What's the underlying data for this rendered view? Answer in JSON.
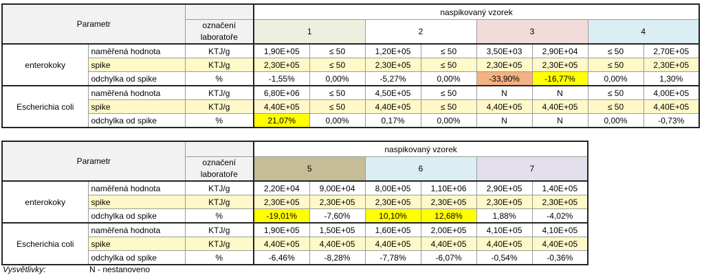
{
  "tables": [
    {
      "param_header": "Parametr",
      "lab_header": "označení laboratoře",
      "sample_header": "naspikovaný vzorek",
      "samples": [
        "1",
        "2",
        "3",
        "4"
      ],
      "sample_colors": [
        "#ebf1de",
        "#ffffff",
        "#f2dcdb",
        "#dbeef4"
      ],
      "groups": [
        {
          "name": "enterokoky",
          "rows": [
            {
              "param": "naměřená hodnota",
              "unit": "KTJ/g",
              "cells": [
                "1,90E+05",
                "≤ 50",
                "1,20E+05",
                "≤ 50",
                "3,50E+03",
                "2,90E+04",
                "≤ 50",
                "2,70E+05"
              ]
            },
            {
              "param": "spike",
              "unit": "KTJ/g",
              "fill": "#fff8c8",
              "cells": [
                "2,30E+05",
                "≤ 50",
                "2,30E+05",
                "≤ 50",
                "2,30E+05",
                "2,30E+05",
                "≤ 50",
                "2,30E+05"
              ]
            },
            {
              "param": "odchylka od spike",
              "unit": "%",
              "cells": [
                "-1,55%",
                "0,00%",
                "-5,27%",
                "0,00%",
                "-33,90%",
                "-16,77%",
                "0,00%",
                "1,30%"
              ],
              "highlights": [
                null,
                null,
                null,
                null,
                "#f4b183",
                "#ffff00",
                null,
                null
              ]
            }
          ]
        },
        {
          "name": "Escherichia coli",
          "rows": [
            {
              "param": "naměřená hodnota",
              "unit": "KTJ/g",
              "cells": [
                "6,80E+06",
                "≤ 50",
                "4,50E+05",
                "≤ 50",
                "N",
                "N",
                "≤ 50",
                "4,00E+05"
              ]
            },
            {
              "param": "spike",
              "unit": "KTJ/g",
              "fill": "#fff8c8",
              "cells": [
                "4,40E+05",
                "≤ 50",
                "4,40E+05",
                "≤ 50",
                "4,40E+05",
                "4,40E+05",
                "≤ 50",
                "4,40E+05"
              ]
            },
            {
              "param": "odchylka od spike",
              "unit": "%",
              "cells": [
                "21,07%",
                "0,00%",
                "0,17%",
                "0,00%",
                "N",
                "N",
                "0,00%",
                "-0,73%"
              ],
              "highlights": [
                "#ffff00",
                null,
                null,
                null,
                null,
                null,
                null,
                null
              ]
            }
          ]
        }
      ]
    },
    {
      "param_header": "Parametr",
      "lab_header": "označení laboratoře",
      "sample_header": "naspikovaný vzorek",
      "samples": [
        "5",
        "6",
        "7"
      ],
      "sample_colors": [
        "#c4bd97",
        "#dbeef4",
        "#e4dfec"
      ],
      "groups": [
        {
          "name": "enterokoky",
          "rows": [
            {
              "param": "naměřená hodnota",
              "unit": "KTJ/g",
              "cells": [
                "2,20E+04",
                "9,00E+04",
                "8,00E+05",
                "1,10E+06",
                "2,90E+05",
                "1,40E+05"
              ]
            },
            {
              "param": "spike",
              "unit": "KTJ/g",
              "fill": "#fff8c8",
              "cells": [
                "2,30E+05",
                "2,30E+05",
                "2,30E+05",
                "2,30E+05",
                "2,30E+05",
                "2,30E+05"
              ]
            },
            {
              "param": "odchylka od spike",
              "unit": "%",
              "cells": [
                "-19,01%",
                "-7,60%",
                "10,10%",
                "12,68%",
                "1,88%",
                "-4,02%"
              ],
              "highlights": [
                "#ffff00",
                null,
                "#ffff00",
                "#ffff00",
                null,
                null
              ]
            }
          ]
        },
        {
          "name": "Escherichia coli",
          "rows": [
            {
              "param": "naměřená hodnota",
              "unit": "KTJ/g",
              "cells": [
                "1,90E+05",
                "1,50E+05",
                "1,60E+05",
                "2,00E+05",
                "4,10E+05",
                "4,10E+05"
              ]
            },
            {
              "param": "spike",
              "unit": "KTJ/g",
              "fill": "#fff8c8",
              "cells": [
                "4,40E+05",
                "4,40E+05",
                "4,40E+05",
                "4,40E+05",
                "4,40E+05",
                "4,40E+05"
              ]
            },
            {
              "param": "odchylka od spike",
              "unit": "%",
              "cells": [
                "-6,46%",
                "-8,28%",
                "-7,78%",
                "-6,07%",
                "-0,54%",
                "-0,36%"
              ]
            }
          ]
        }
      ]
    }
  ],
  "footer": {
    "label": "Vysvětlivky:",
    "text": "N - nestanoveno"
  }
}
